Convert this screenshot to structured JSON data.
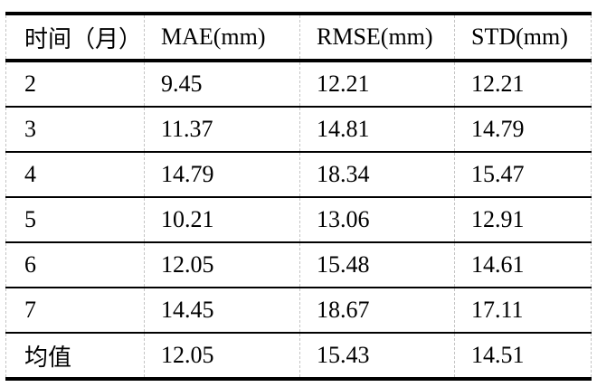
{
  "table": {
    "headers": [
      "时间（月）",
      "MAE(mm)",
      "RMSE(mm)",
      "STD(mm)"
    ],
    "rows": [
      [
        "2",
        "9.45",
        "12.21",
        "12.21"
      ],
      [
        "3",
        "11.37",
        "14.81",
        "14.79"
      ],
      [
        "4",
        "14.79",
        "18.34",
        "15.47"
      ],
      [
        "5",
        "10.21",
        "13.06",
        "12.91"
      ],
      [
        "6",
        "12.05",
        "15.48",
        "14.61"
      ],
      [
        "7",
        "14.45",
        "18.67",
        "17.11"
      ],
      [
        "均值",
        "12.05",
        "15.43",
        "14.51"
      ]
    ]
  },
  "colors": {
    "text": "#000000",
    "rule": "#000000",
    "gridline": "#c4c4c4",
    "background": "#ffffff"
  }
}
